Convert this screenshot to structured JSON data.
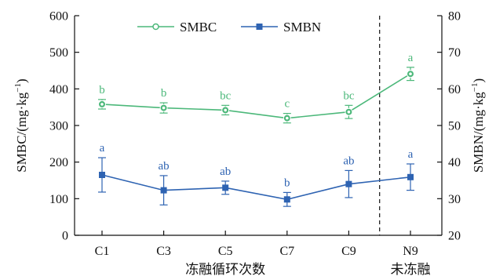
{
  "chart_data": {
    "type": "line",
    "categories": [
      "C1",
      "C3",
      "C5",
      "C7",
      "C9",
      "N9"
    ],
    "category_groups": [
      {
        "label": "冻融循环次数",
        "categories": [
          "C1",
          "C3",
          "C5",
          "C7",
          "C9"
        ]
      },
      {
        "label": "未冻融",
        "categories": [
          "N9"
        ]
      }
    ],
    "divider_between": [
      "C9",
      "N9"
    ],
    "left_axis": {
      "label": "SMBC/(mg·kg⁻¹)",
      "label_main": "SMBC/(mg",
      "label_sep": "·",
      "label_kg": "kg",
      "label_exp": "−1",
      "label_close": ")",
      "ylim": [
        0,
        600
      ],
      "ticks": [
        0,
        100,
        200,
        300,
        400,
        500,
        600
      ]
    },
    "right_axis": {
      "label": "SMBN/(mg·kg⁻¹)",
      "label_main": "SMBN/(mg",
      "label_sep": "·",
      "label_kg": "kg",
      "label_exp": "−1",
      "label_close": ")",
      "ylim": [
        20,
        80
      ],
      "ticks": [
        20,
        30,
        40,
        50,
        60,
        70,
        80
      ]
    },
    "series": [
      {
        "name": "SMBC",
        "axis": "left",
        "color": "#4cb87a",
        "marker": "circle",
        "values": [
          358,
          348,
          342,
          320,
          337,
          441
        ],
        "errors": [
          13,
          14,
          13,
          13,
          18,
          18
        ],
        "significance": [
          "b",
          "b",
          "bc",
          "c",
          "bc",
          "a"
        ]
      },
      {
        "name": "SMBN",
        "axis": "right",
        "color": "#2e63b2",
        "marker": "square",
        "values": [
          36.5,
          32.3,
          33.0,
          29.8,
          34.0,
          35.9
        ],
        "errors": [
          4.7,
          4.0,
          1.8,
          1.9,
          3.7,
          3.6
        ],
        "significance": [
          "a",
          "ab",
          "ab",
          "b",
          "ab",
          "a"
        ]
      }
    ],
    "legend_position": "top-center",
    "grid": false
  }
}
